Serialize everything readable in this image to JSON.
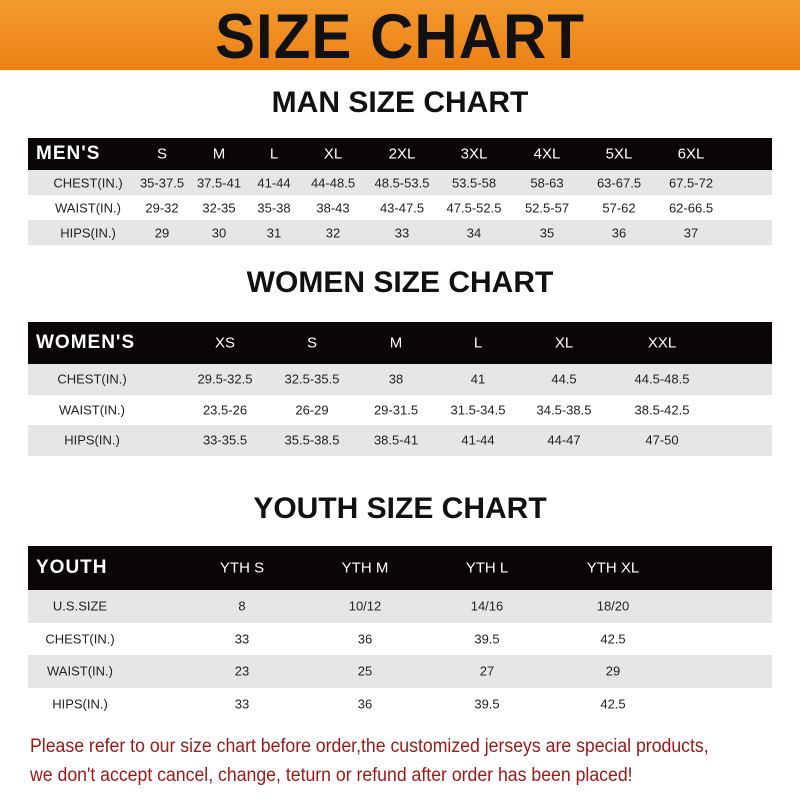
{
  "title": "SIZE CHART",
  "accent_color": "#ee8a1f",
  "note_color": "#a01818",
  "men": {
    "title": "MAN SIZE CHART",
    "header": [
      "MEN'S",
      "S",
      "M",
      "L",
      "XL",
      "2XL",
      "3XL",
      "4XL",
      "5XL",
      "6XL"
    ],
    "rows": [
      [
        "CHEST(IN.)",
        "35-37.5",
        "37.5-41",
        "41-44",
        "44-48.5",
        "48.5-53.5",
        "53.5-58",
        "58-63",
        "63-67.5",
        "67.5-72"
      ],
      [
        "WAIST(IN.)",
        "29-32",
        "32-35",
        "35-38",
        "38-43",
        "43-47.5",
        "47.5-52.5",
        "52.5-57",
        "57-62",
        "62-66.5"
      ],
      [
        "HIPS(IN.)",
        "29",
        "30",
        "31",
        "32",
        "33",
        "34",
        "35",
        "36",
        "37"
      ]
    ]
  },
  "women": {
    "title": "WOMEN SIZE CHART",
    "header": [
      "WOMEN'S",
      "XS",
      "S",
      "M",
      "L",
      "XL",
      "XXL"
    ],
    "rows": [
      [
        "CHEST(IN.)",
        "29.5-32.5",
        "32.5-35.5",
        "38",
        "41",
        "44.5",
        "44.5-48.5"
      ],
      [
        "WAIST(IN.)",
        "23.5-26",
        "26-29",
        "29-31.5",
        "31.5-34.5",
        "34.5-38.5",
        "38.5-42.5"
      ],
      [
        "HIPS(IN.)",
        "33-35.5",
        "35.5-38.5",
        "38.5-41",
        "41-44",
        "44-47",
        "47-50"
      ]
    ]
  },
  "youth": {
    "title": "YOUTH SIZE CHART",
    "header": [
      "YOUTH",
      "YTH S",
      "YTH M",
      "YTH L",
      "YTH XL"
    ],
    "rows": [
      [
        "U.S.SIZE",
        "8",
        "10/12",
        "14/16",
        "18/20"
      ],
      [
        "CHEST(IN.)",
        "33",
        "36",
        "39.5",
        "42.5"
      ],
      [
        "WAIST(IN.)",
        "23",
        "25",
        "27",
        "29"
      ],
      [
        "HIPS(IN.)",
        "33",
        "36",
        "39.5",
        "42.5"
      ]
    ]
  },
  "note": [
    "Please refer to our size chart before order,the customized jerseys are special products,",
    "we don't accept cancel, change, teturn or refund after order has been placed!"
  ]
}
